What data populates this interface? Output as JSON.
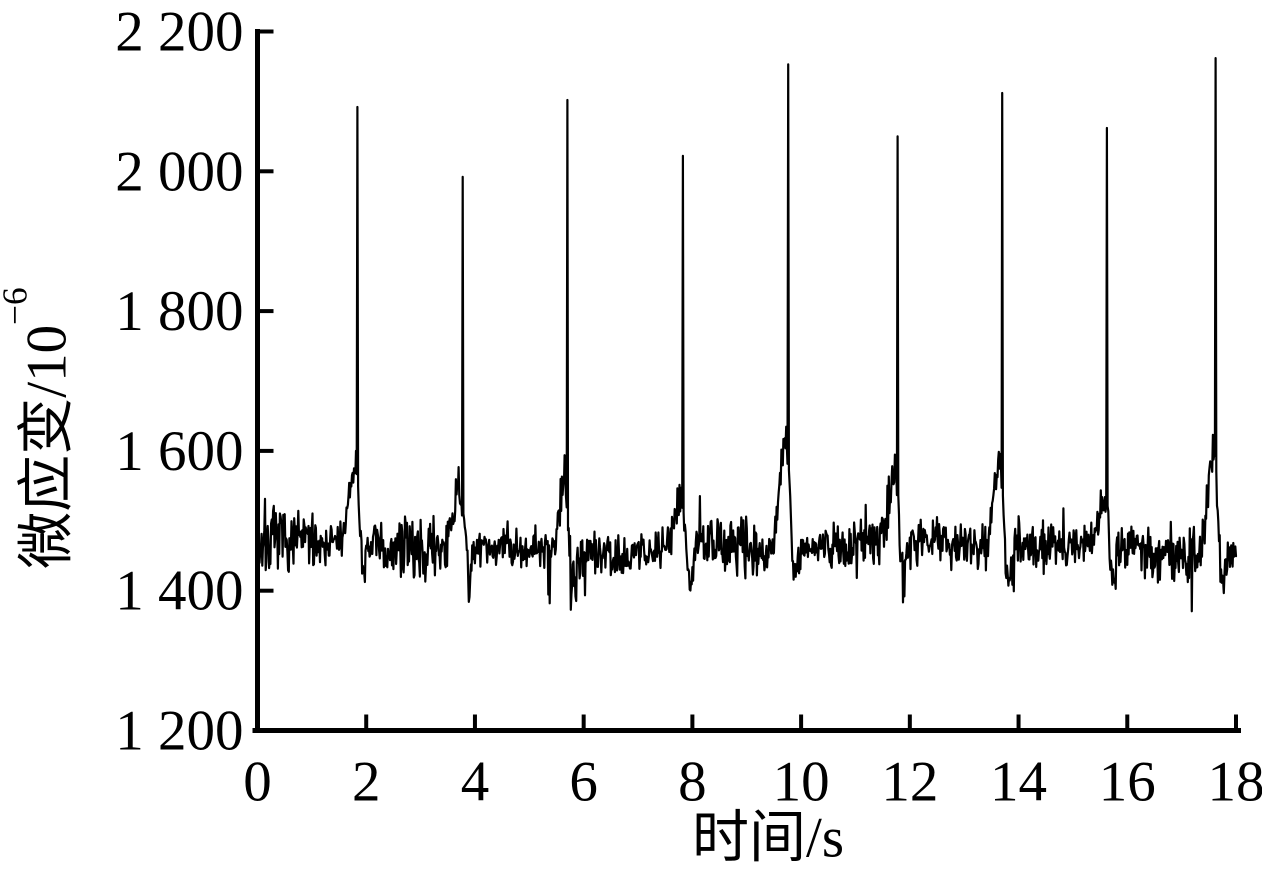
{
  "chart_data": {
    "type": "line",
    "title": "",
    "xlabel": "时间/s",
    "ylabel": "微应变/10⁻⁶",
    "ylabel_base": "微应变/10",
    "ylabel_exp": "−6",
    "xlim": [
      0,
      18
    ],
    "ylim": [
      1200,
      2200
    ],
    "grid": false,
    "legend": false,
    "line_color": "#000000",
    "background_color": "#ffffff",
    "xticks": [
      {
        "v": 0,
        "label": "0"
      },
      {
        "v": 2,
        "label": "2"
      },
      {
        "v": 4,
        "label": "4"
      },
      {
        "v": 6,
        "label": "6"
      },
      {
        "v": 8,
        "label": "8"
      },
      {
        "v": 10,
        "label": "10"
      },
      {
        "v": 12,
        "label": "12"
      },
      {
        "v": 14,
        "label": "14"
      },
      {
        "v": 16,
        "label": "16"
      },
      {
        "v": 18,
        "label": "18"
      }
    ],
    "yticks": [
      {
        "v": 1200,
        "label": "1 200"
      },
      {
        "v": 1400,
        "label": "1 400"
      },
      {
        "v": 1600,
        "label": "1 600"
      },
      {
        "v": 1800,
        "label": "1 800"
      },
      {
        "v": 2000,
        "label": "2 000"
      },
      {
        "v": 2200,
        "label": "2 200"
      }
    ],
    "baseline": {
      "mean": 1462,
      "band_low": 1415,
      "band_high": 1520,
      "noise_half_range": 42,
      "seed": 7
    },
    "sample_interval_s": 0.0125,
    "spikes": [
      {
        "t": 1.84,
        "peak": 2092,
        "shoulder": 1572,
        "dip": 1400
      },
      {
        "t": 3.78,
        "peak": 1992,
        "shoulder": 1548,
        "dip": 1386
      },
      {
        "t": 5.7,
        "peak": 2102,
        "shoulder": 1568,
        "dip": 1390
      },
      {
        "t": 7.83,
        "peak": 2022,
        "shoulder": 1542,
        "dip": 1396
      },
      {
        "t": 9.76,
        "peak": 2153,
        "shoulder": 1632,
        "dip": 1376
      },
      {
        "t": 11.77,
        "peak": 2050,
        "shoulder": 1560,
        "dip": 1386
      },
      {
        "t": 13.7,
        "peak": 2112,
        "shoulder": 1592,
        "dip": 1375
      },
      {
        "t": 15.63,
        "peak": 2062,
        "shoulder": 1535,
        "dip": 1392
      },
      {
        "t": 17.63,
        "peak": 2162,
        "shoulder": 1615,
        "dip": 1382
      }
    ]
  }
}
